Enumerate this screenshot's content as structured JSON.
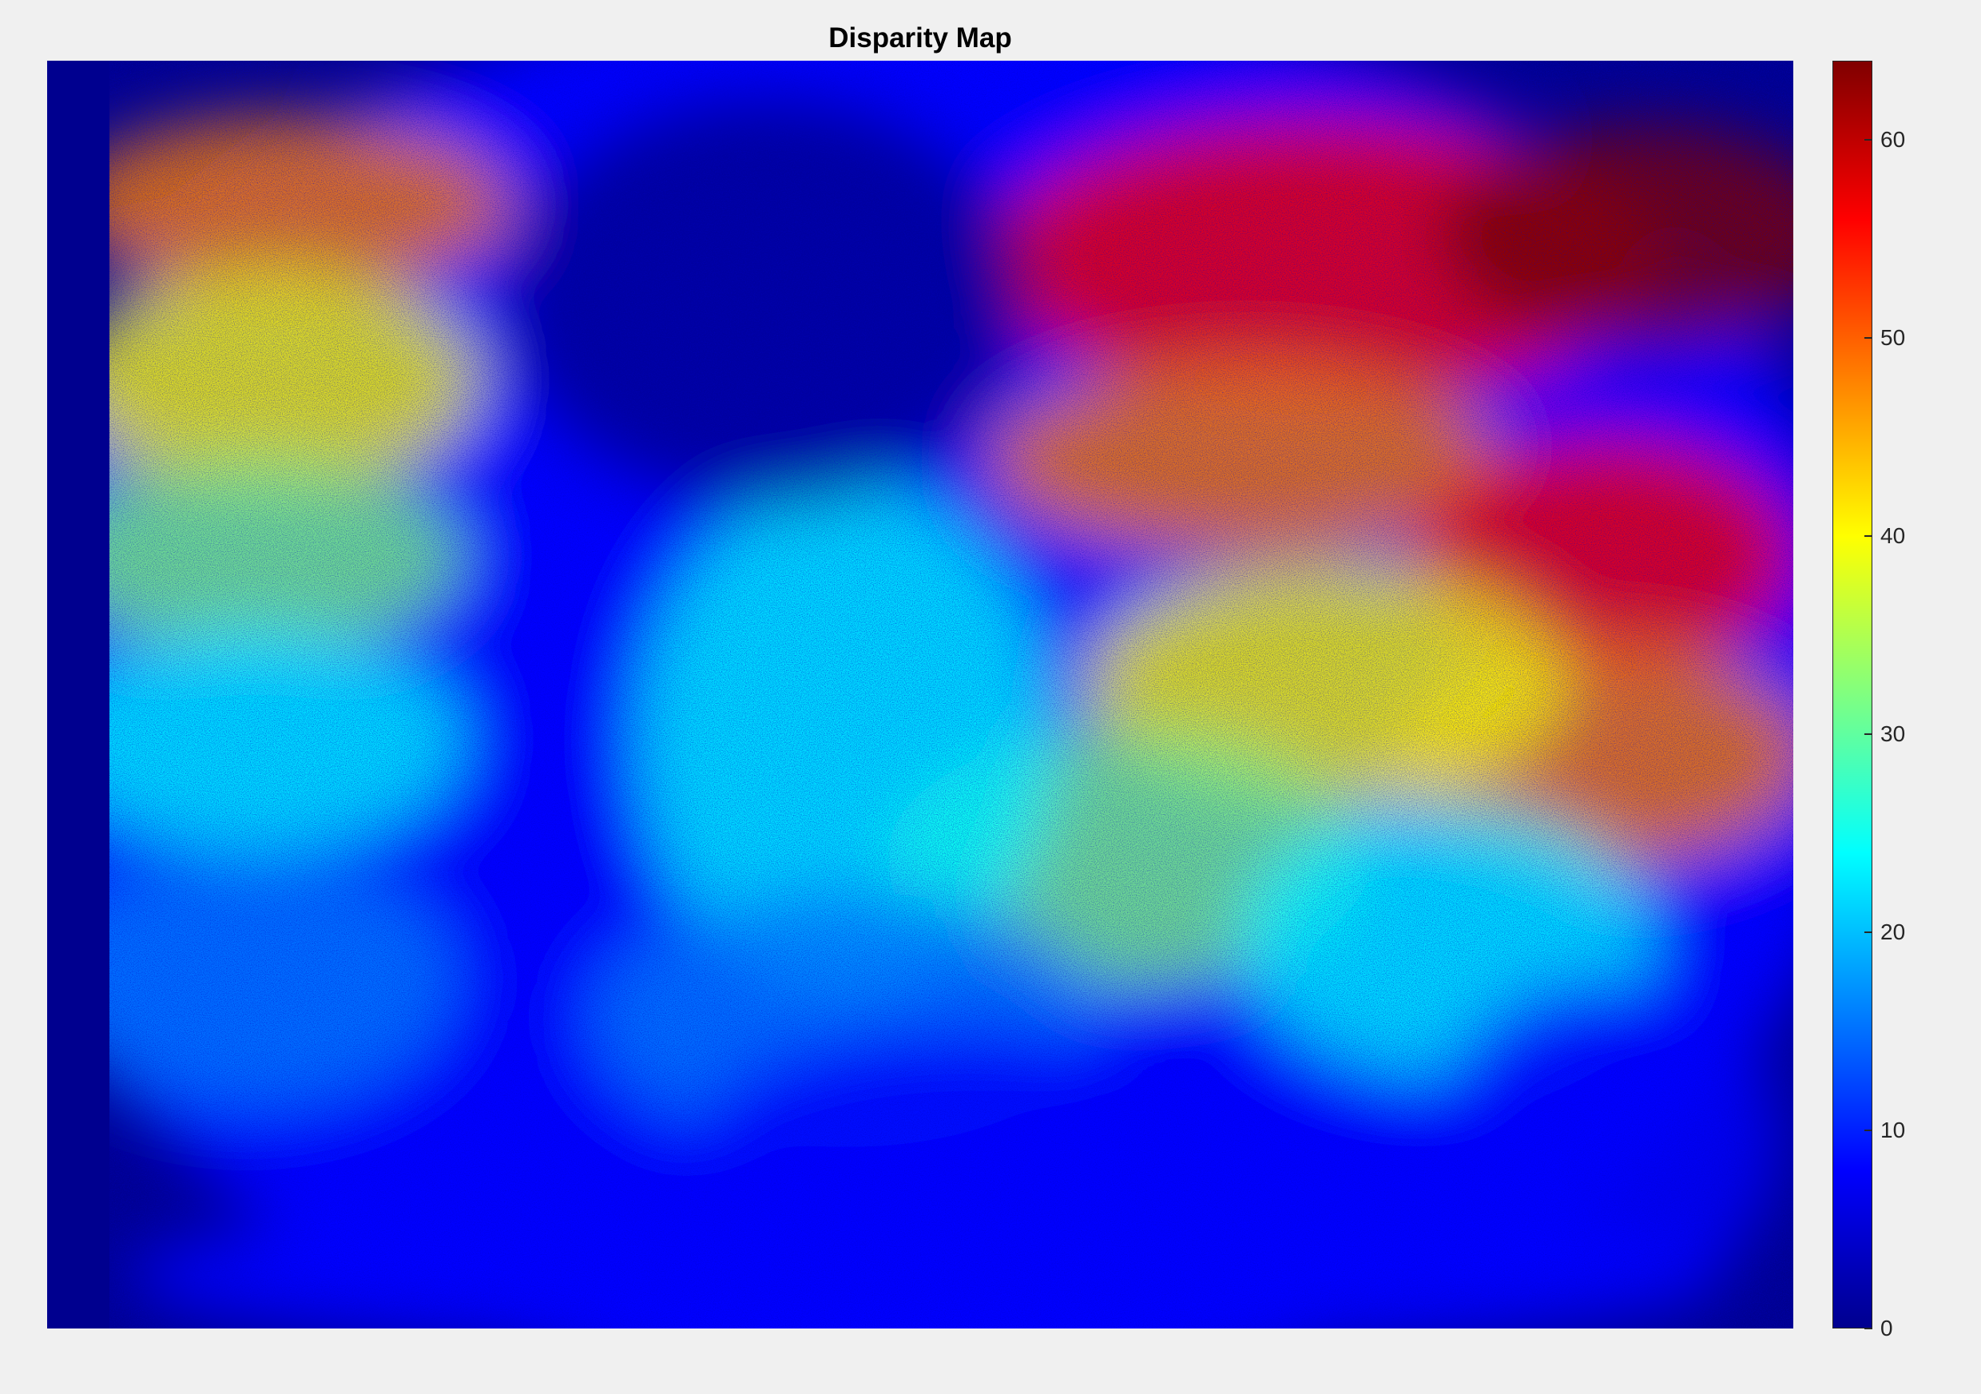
{
  "chart_data": {
    "type": "heatmap",
    "title": "Disparity Map",
    "colormap": "jet",
    "clim": [
      0,
      64
    ],
    "colorbar": {
      "location": "right",
      "ticks": [
        0,
        10,
        20,
        30,
        40,
        50,
        60
      ],
      "tick_labels": [
        "0",
        "10",
        "20",
        "30",
        "40",
        "50",
        "60"
      ]
    },
    "colors": {
      "jet": [
        "#00008f",
        "#0000ff",
        "#0080ff",
        "#00ffff",
        "#80ff80",
        "#ffff00",
        "#ff8000",
        "#ff0000",
        "#800000"
      ],
      "background": "#f0f0f0"
    }
  }
}
